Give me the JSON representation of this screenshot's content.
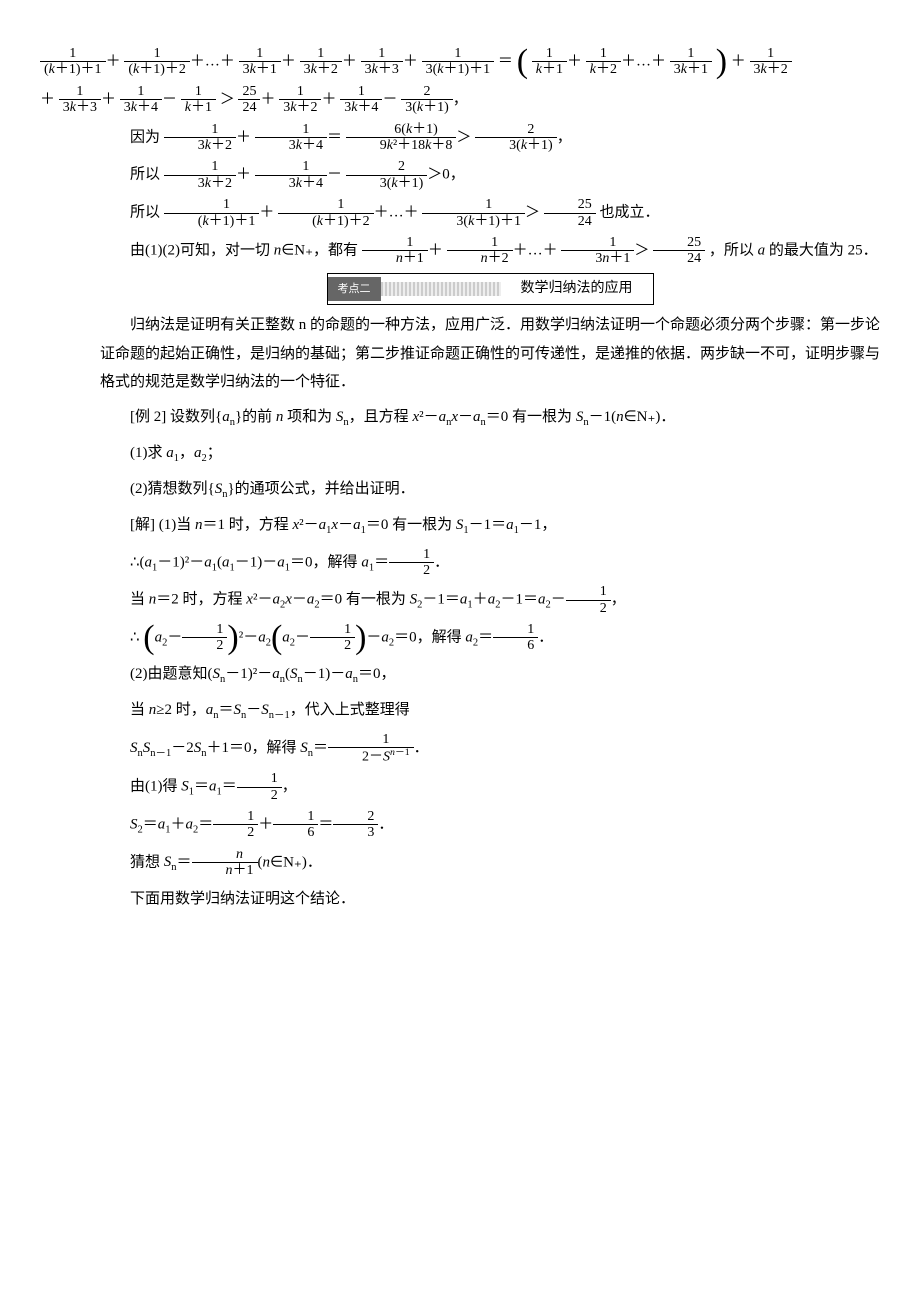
{
  "eq1_part1": "＝",
  "eq1_part2": "＋",
  "eq2_prefix": "＋",
  "eq2_gt": "＞",
  "line_because": "因为",
  "line_so1": "所以",
  "line_so2": "所以",
  "line_so2_tail": "也成立．",
  "conclusion12_a": "由(1)(2)可知，对一切 ",
  "conclusion12_b": "∈N₊，都有",
  "conclusion12_c": "，所以 ",
  "conclusion12_d": " 的最大值为 25．",
  "section_tag": "考点二",
  "section_title": "数学归纳法的应用",
  "para1": "归纳法是证明有关正整数 n 的命题的一种方法，应用广泛．用数学归纳法证明一个命题必须分两个步骤：第一步论证命题的起始正确性，是归纳的基础；第二步推证命题正确性的可传递性，是递推的依据．两步缺一不可，证明步骤与格式的规范是数学归纳法的一个特征．",
  "ex2_intro_a": "[例 2] 设数列{",
  "ex2_intro_b": "}的前 ",
  "ex2_intro_c": " 项和为 ",
  "ex2_intro_d": "，且方程 ",
  "ex2_intro_e": "＝0 有一根为 ",
  "ex2_intro_f": "－1(",
  "ex2_intro_g": "∈N₊)．",
  "q1": "(1)求 ",
  "q1_mid": "，",
  "q1_end": "；",
  "q2_a": "(2)猜想数列{",
  "q2_b": "}的通项公式，并给出证明．",
  "sol1_a": "[解] (1)当 ",
  "sol1_b": "＝1 时，方程 ",
  "sol1_c": "＝0 有一根为 ",
  "sol1_d": "－1＝",
  "sol1_e": "－1，",
  "sol1f_a": "∴(",
  "sol1f_b": "－1)²－",
  "sol1f_c": "(",
  "sol1f_d": "－1)－",
  "sol1f_e": "＝0，解得 ",
  "sol1f_f": "＝",
  "n2_a": "当 ",
  "n2_b": "＝2 时，方程 ",
  "n2_c": "＝0 有一根为 ",
  "n2_d": "－1＝",
  "n2_e": "＋",
  "n2_f": "－1＝",
  "n2_g": "－",
  "n2_h": "，",
  "a2eq_a": "∴",
  "a2eq_b": "²－",
  "a2eq_c": "－",
  "a2eq_d": "＝0，解得 ",
  "a2eq_e": "＝",
  "part2_a": "(2)由题意知(",
  "part2_b": "－1)²－",
  "part2_c": "(",
  "part2_d": "－1)－",
  "part2_e": "＝0，",
  "ng2_a": "当 ",
  "ng2_b": "≥2 时，",
  "ng2_c": "＝",
  "ng2_d": "－",
  "ng2_e": "，代入上式整理得",
  "snrec_a": "",
  "snrec_b": "－2",
  "snrec_c": "＋1＝0，解得 ",
  "snrec_d": "＝",
  "by1_a": "由(1)得 ",
  "by1_b": "＝",
  "by1_c": "＝",
  "by1_d": "，",
  "s2_a": "",
  "s2_b": "＝",
  "s2_c": "＋",
  "s2_d": "＝",
  "s2_e": "＋",
  "s2_f": "＝",
  "s2_g": "．",
  "guess_a": "猜想 ",
  "guess_b": "＝",
  "guess_c": "(",
  "guess_d": "∈N₊)．",
  "last": "下面用数学归纳法证明这个结论．",
  "frac_25_24_num": "25",
  "frac_25_24_den": "24",
  "frac_1_2_num": "1",
  "frac_1_2_den": "2",
  "frac_1_6_num": "1",
  "frac_1_6_den": "6",
  "frac_2_3_num": "2",
  "frac_2_3_den": "3"
}
